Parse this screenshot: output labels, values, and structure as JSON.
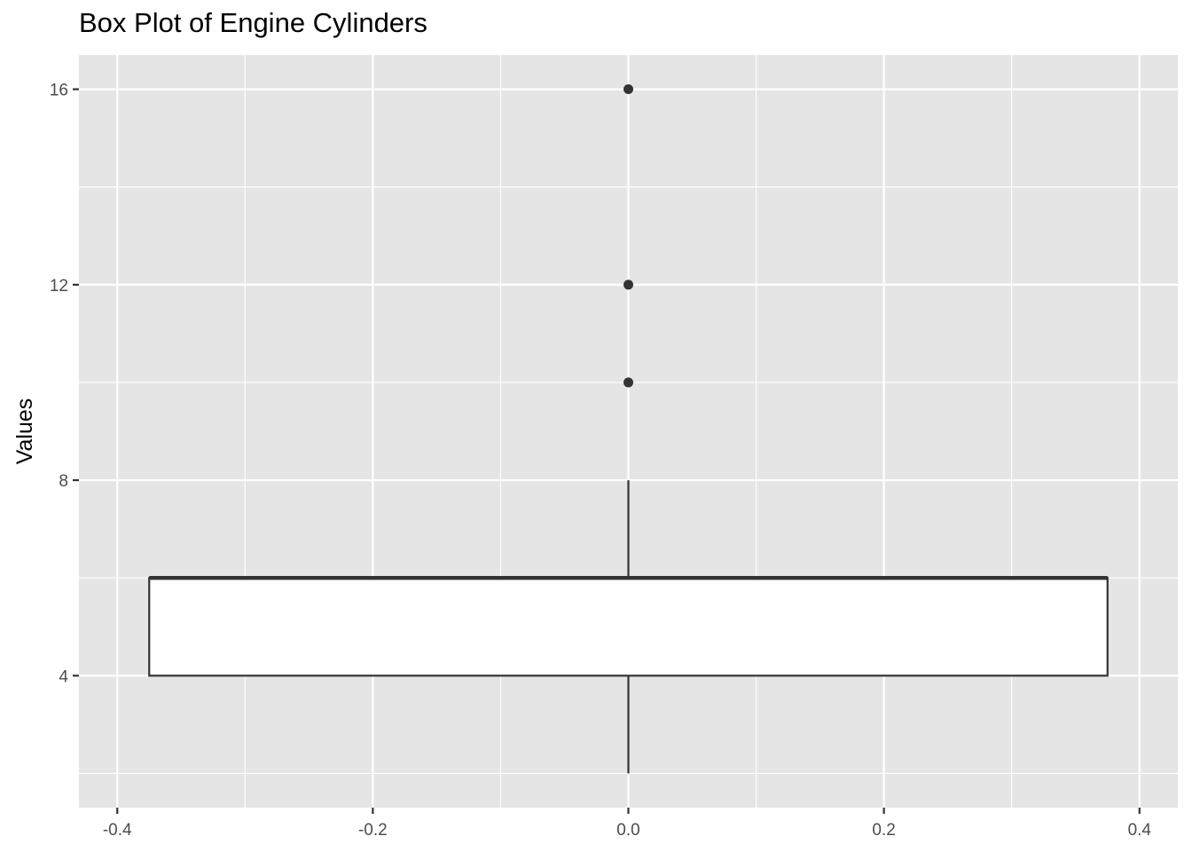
{
  "chart_data": {
    "type": "box",
    "title": "Box Plot of Engine Cylinders",
    "xlabel": "",
    "ylabel": "Values",
    "xlim": [
      -0.43,
      0.43
    ],
    "ylim": [
      1.3,
      16.7
    ],
    "x_ticks": [
      -0.4,
      -0.2,
      0.0,
      0.2,
      0.4
    ],
    "x_tick_labels": [
      "-0.4",
      "-0.2",
      "0.0",
      "0.2",
      "0.4"
    ],
    "y_ticks": [
      4,
      8,
      12,
      16
    ],
    "y_tick_labels": [
      "4",
      "8",
      "12",
      "16"
    ],
    "grid": true,
    "boxes": [
      {
        "x_center": 0.0,
        "x_left": -0.375,
        "x_right": 0.375,
        "whisker_low": 2,
        "q1": 4,
        "median": 6,
        "q3": 6,
        "whisker_high": 8,
        "outliers": [
          10,
          12,
          16
        ]
      }
    ],
    "colors": {
      "panel_background": "#e5e5e5",
      "grid": "#ffffff",
      "box_fill": "#ffffff",
      "box_line": "#333333",
      "outlier": "#333333"
    }
  }
}
